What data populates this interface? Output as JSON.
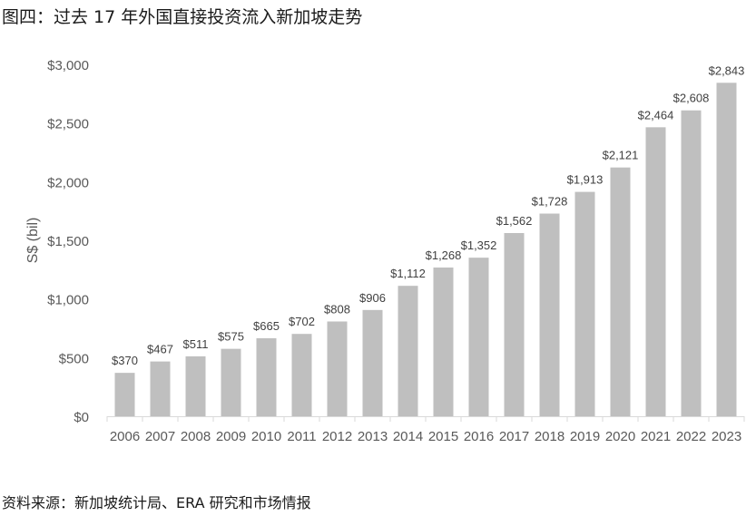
{
  "title": "图四：过去 17 年外国直接投资流入新加坡走势",
  "source": "资料来源：新加坡统计局、ERA 研究和市场情报",
  "colors": {
    "bar": "#bfbfbf",
    "axis": "#d9d9d9",
    "text": "#595959"
  },
  "chart_data": {
    "type": "bar",
    "ylabel": "S$ (bil)",
    "ylim": [
      0,
      3000
    ],
    "grid": false,
    "yticks": [
      "$0",
      "$500",
      "$1,000",
      "$1,500",
      "$2,000",
      "$2,500",
      "$3,000"
    ],
    "categories": [
      "2006",
      "2007",
      "2008",
      "2009",
      "2010",
      "2011",
      "2012",
      "2013",
      "2014",
      "2015",
      "2016",
      "2017",
      "2018",
      "2019",
      "2020",
      "2021",
      "2022",
      "2023"
    ],
    "values": [
      370,
      467,
      511,
      575,
      665,
      702,
      808,
      906,
      1112,
      1268,
      1352,
      1562,
      1728,
      1913,
      2121,
      2464,
      2608,
      2843
    ],
    "data_labels": [
      "$370",
      "$467",
      "$511",
      "$575",
      "$665",
      "$702",
      "$808",
      "$906",
      "$1,112",
      "$1,268",
      "$1,352",
      "$1,562",
      "$1,728",
      "$1,913",
      "$2,121",
      "$2,464",
      "$2,608",
      "$2,843"
    ]
  }
}
